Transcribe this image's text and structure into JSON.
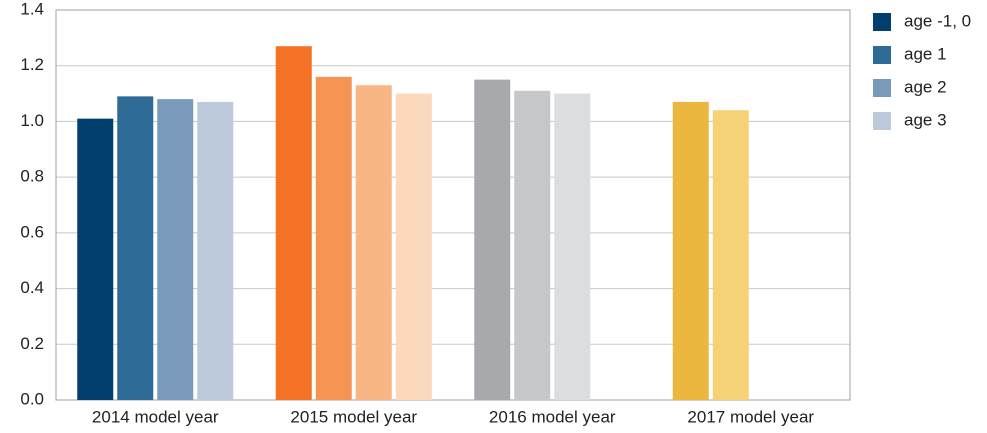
{
  "chart_data": {
    "type": "bar",
    "categories": [
      "2014 model year",
      "2015 model year",
      "2016 model year",
      "2017 model year"
    ],
    "series": [
      {
        "name": "age -1, 0",
        "color": "#003f6e",
        "colors": [
          "#003f6e",
          "#f37224",
          "#a7a9ac",
          "#ecb73e"
        ],
        "values": [
          1.01,
          1.27,
          1.15,
          1.07
        ]
      },
      {
        "name": "age 1",
        "color": "#2e6a96",
        "colors": [
          "#2e6a96",
          "#f69454",
          "#c6c7c9",
          "#f5d177"
        ],
        "values": [
          1.09,
          1.16,
          1.11,
          1.04
        ]
      },
      {
        "name": "age 2",
        "color": "#7a9abb",
        "colors": [
          "#7a9abb",
          "#f9b685",
          "#dcdddf",
          "#f5d177"
        ],
        "values": [
          1.08,
          1.13,
          1.1,
          null
        ]
      },
      {
        "name": "age 3",
        "color": "#bdcadb",
        "colors": [
          "#bdcadb",
          "#fcd8bd",
          "#dcdddf",
          "#f5d177"
        ],
        "values": [
          1.07,
          1.1,
          null,
          null
        ]
      }
    ],
    "ylim": [
      0,
      1.4
    ],
    "yticks": [
      {
        "value": 0,
        "label": "0.0"
      },
      0.2,
      0.4,
      0.6,
      0.8,
      {
        "value": 1,
        "label": "1.0"
      },
      1.2,
      1.4
    ],
    "grid": true,
    "legend": "right"
  }
}
